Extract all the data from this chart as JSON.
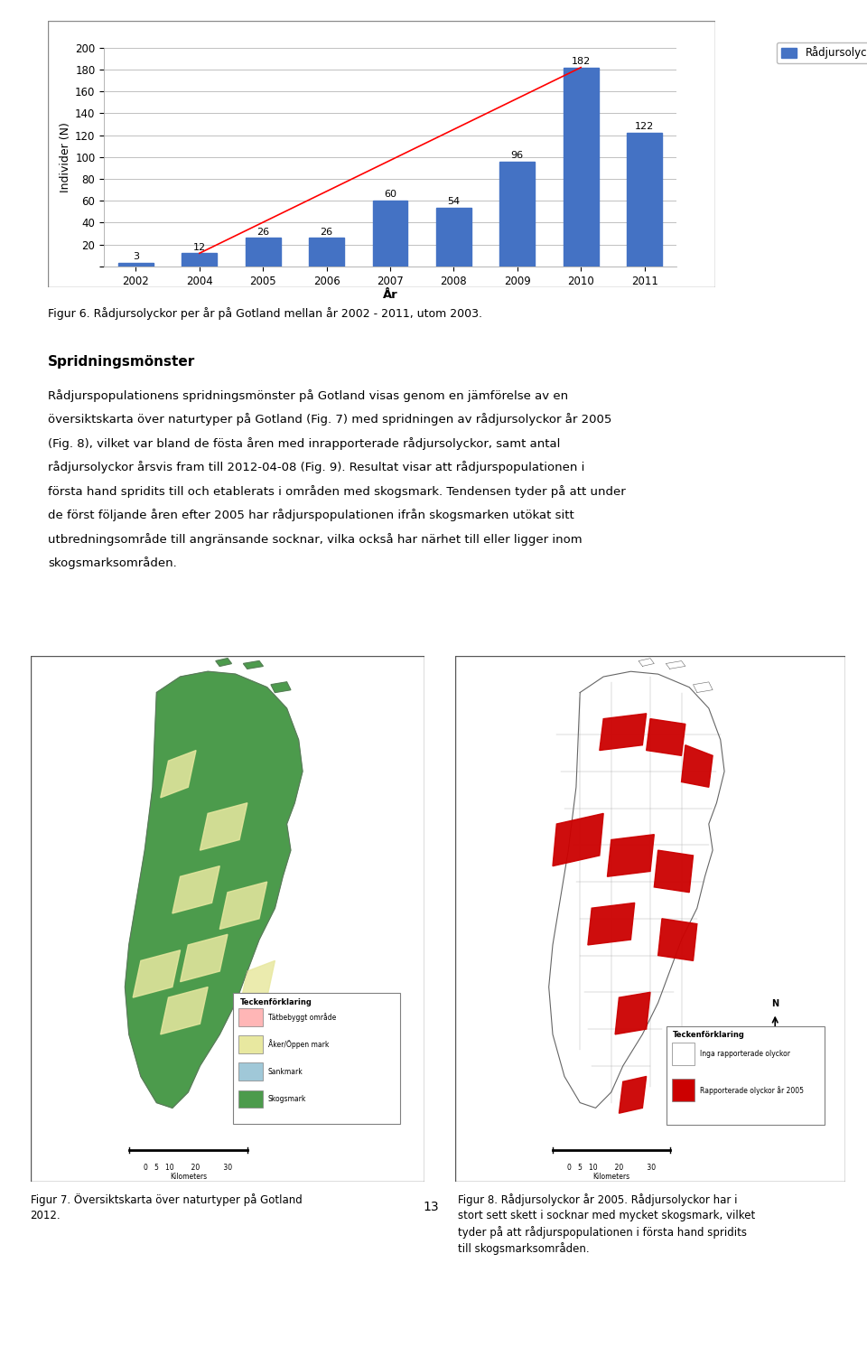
{
  "years": [
    2002,
    2004,
    2005,
    2006,
    2007,
    2008,
    2009,
    2010,
    2011
  ],
  "values": [
    3,
    12,
    26,
    26,
    60,
    54,
    96,
    182,
    122
  ],
  "bar_color": "#4472C4",
  "trend_color": "#FF0000",
  "legend_label": "Rådjursolyckor",
  "ylabel": "Individer (N)",
  "xlabel": "År",
  "ylim": [
    0,
    200
  ],
  "yticks": [
    0,
    20,
    40,
    60,
    80,
    100,
    120,
    140,
    160,
    180,
    200
  ],
  "figure_caption": "Figur 6. Rådjursolyckor per år på Gotland mellan år 2002 - 2011, utom 2003.",
  "heading": "Spridningsmönster",
  "body_line1": "Rådjurspopulationens spridningsmönster på Gotland visas genom en jämförelse av en",
  "body_line2": "översiktskarta över naturtyper på Gotland (Fig. 7) med spridningen av rådjursolyckor år 2005",
  "body_line3": "(Fig. 8), vilket var bland de fösta åren med inrapporterade rådjursolyckor, samt antal",
  "body_line4": "rådjursolyckor årsvis fram till 2012-04-08 (Fig. 9). Resultat visar att rådjurspopulationen i",
  "body_line5": "första hand spridits till och etablerats i områden med skogsmark. Tendensen tyder på att under",
  "body_line6": "de först följande åren efter 2005 har rådjurspopulationen ifrån skogsmarken utökat sitt",
  "body_line7": "utbredningsområde till angränsande socknar, vilka också har närhet till eller ligger inom",
  "body_line8": "skogsmarksområden.",
  "fig7_caption_line1": "Figur 7. Översiktskarta över naturtyper på Gotland",
  "fig7_caption_line2": "2012.",
  "fig8_caption_line1": "Figur 8. Rådjursolyckor år 2005. Rådjursolyckor har i",
  "fig8_caption_line2": "stort sett skett i socknar med mycket skogsmark, vilket",
  "fig8_caption_line3": "tyder på att rådjurspopulationen i första hand spridits",
  "fig8_caption_line4": "till skogsmarksområden.",
  "page_number": "13",
  "background_color": "#FFFFFF",
  "text_color": "#000000",
  "grid_color": "#C0C0C0",
  "chart_border_color": "#888888",
  "map_border_color": "#555555"
}
